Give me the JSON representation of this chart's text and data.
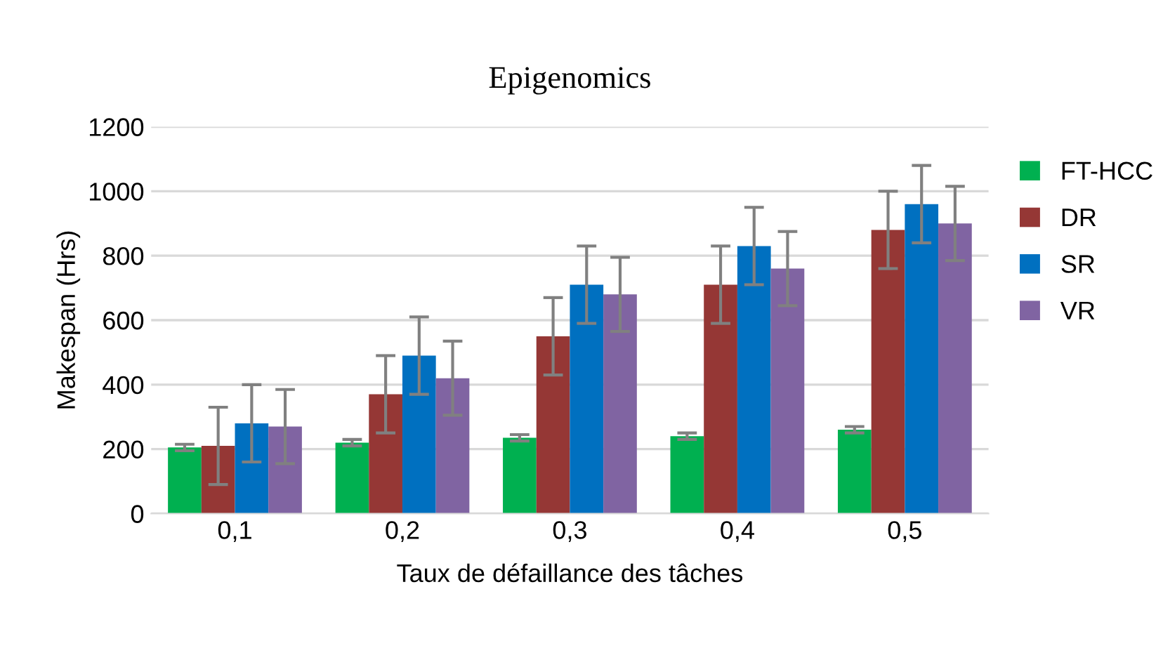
{
  "chart_data": {
    "type": "bar",
    "title": "Epigenomics",
    "xlabel": "Taux de défaillance des tâches",
    "ylabel": "Makespan (Hrs)",
    "categories": [
      "0,1",
      "0,2",
      "0,3",
      "0,4",
      "0,5"
    ],
    "series": [
      {
        "name": "FT-HCC",
        "color": "#00b050",
        "values": [
          205,
          220,
          235,
          240,
          260
        ],
        "errors": [
          10,
          10,
          10,
          10,
          10
        ]
      },
      {
        "name": "DR",
        "color": "#953735",
        "values": [
          210,
          370,
          550,
          710,
          880
        ],
        "errors": [
          120,
          120,
          120,
          120,
          120
        ]
      },
      {
        "name": "SR",
        "color": "#0070c0",
        "values": [
          280,
          490,
          710,
          830,
          960
        ],
        "errors": [
          120,
          120,
          120,
          120,
          120
        ]
      },
      {
        "name": "VR",
        "color": "#8064a2",
        "values": [
          270,
          420,
          680,
          760,
          900
        ],
        "errors": [
          115,
          115,
          115,
          115,
          115
        ]
      }
    ],
    "ylim": [
      0,
      1200
    ],
    "yticks": [
      0,
      200,
      400,
      600,
      800,
      1000,
      1200
    ],
    "grid": "y",
    "legend": "right"
  }
}
